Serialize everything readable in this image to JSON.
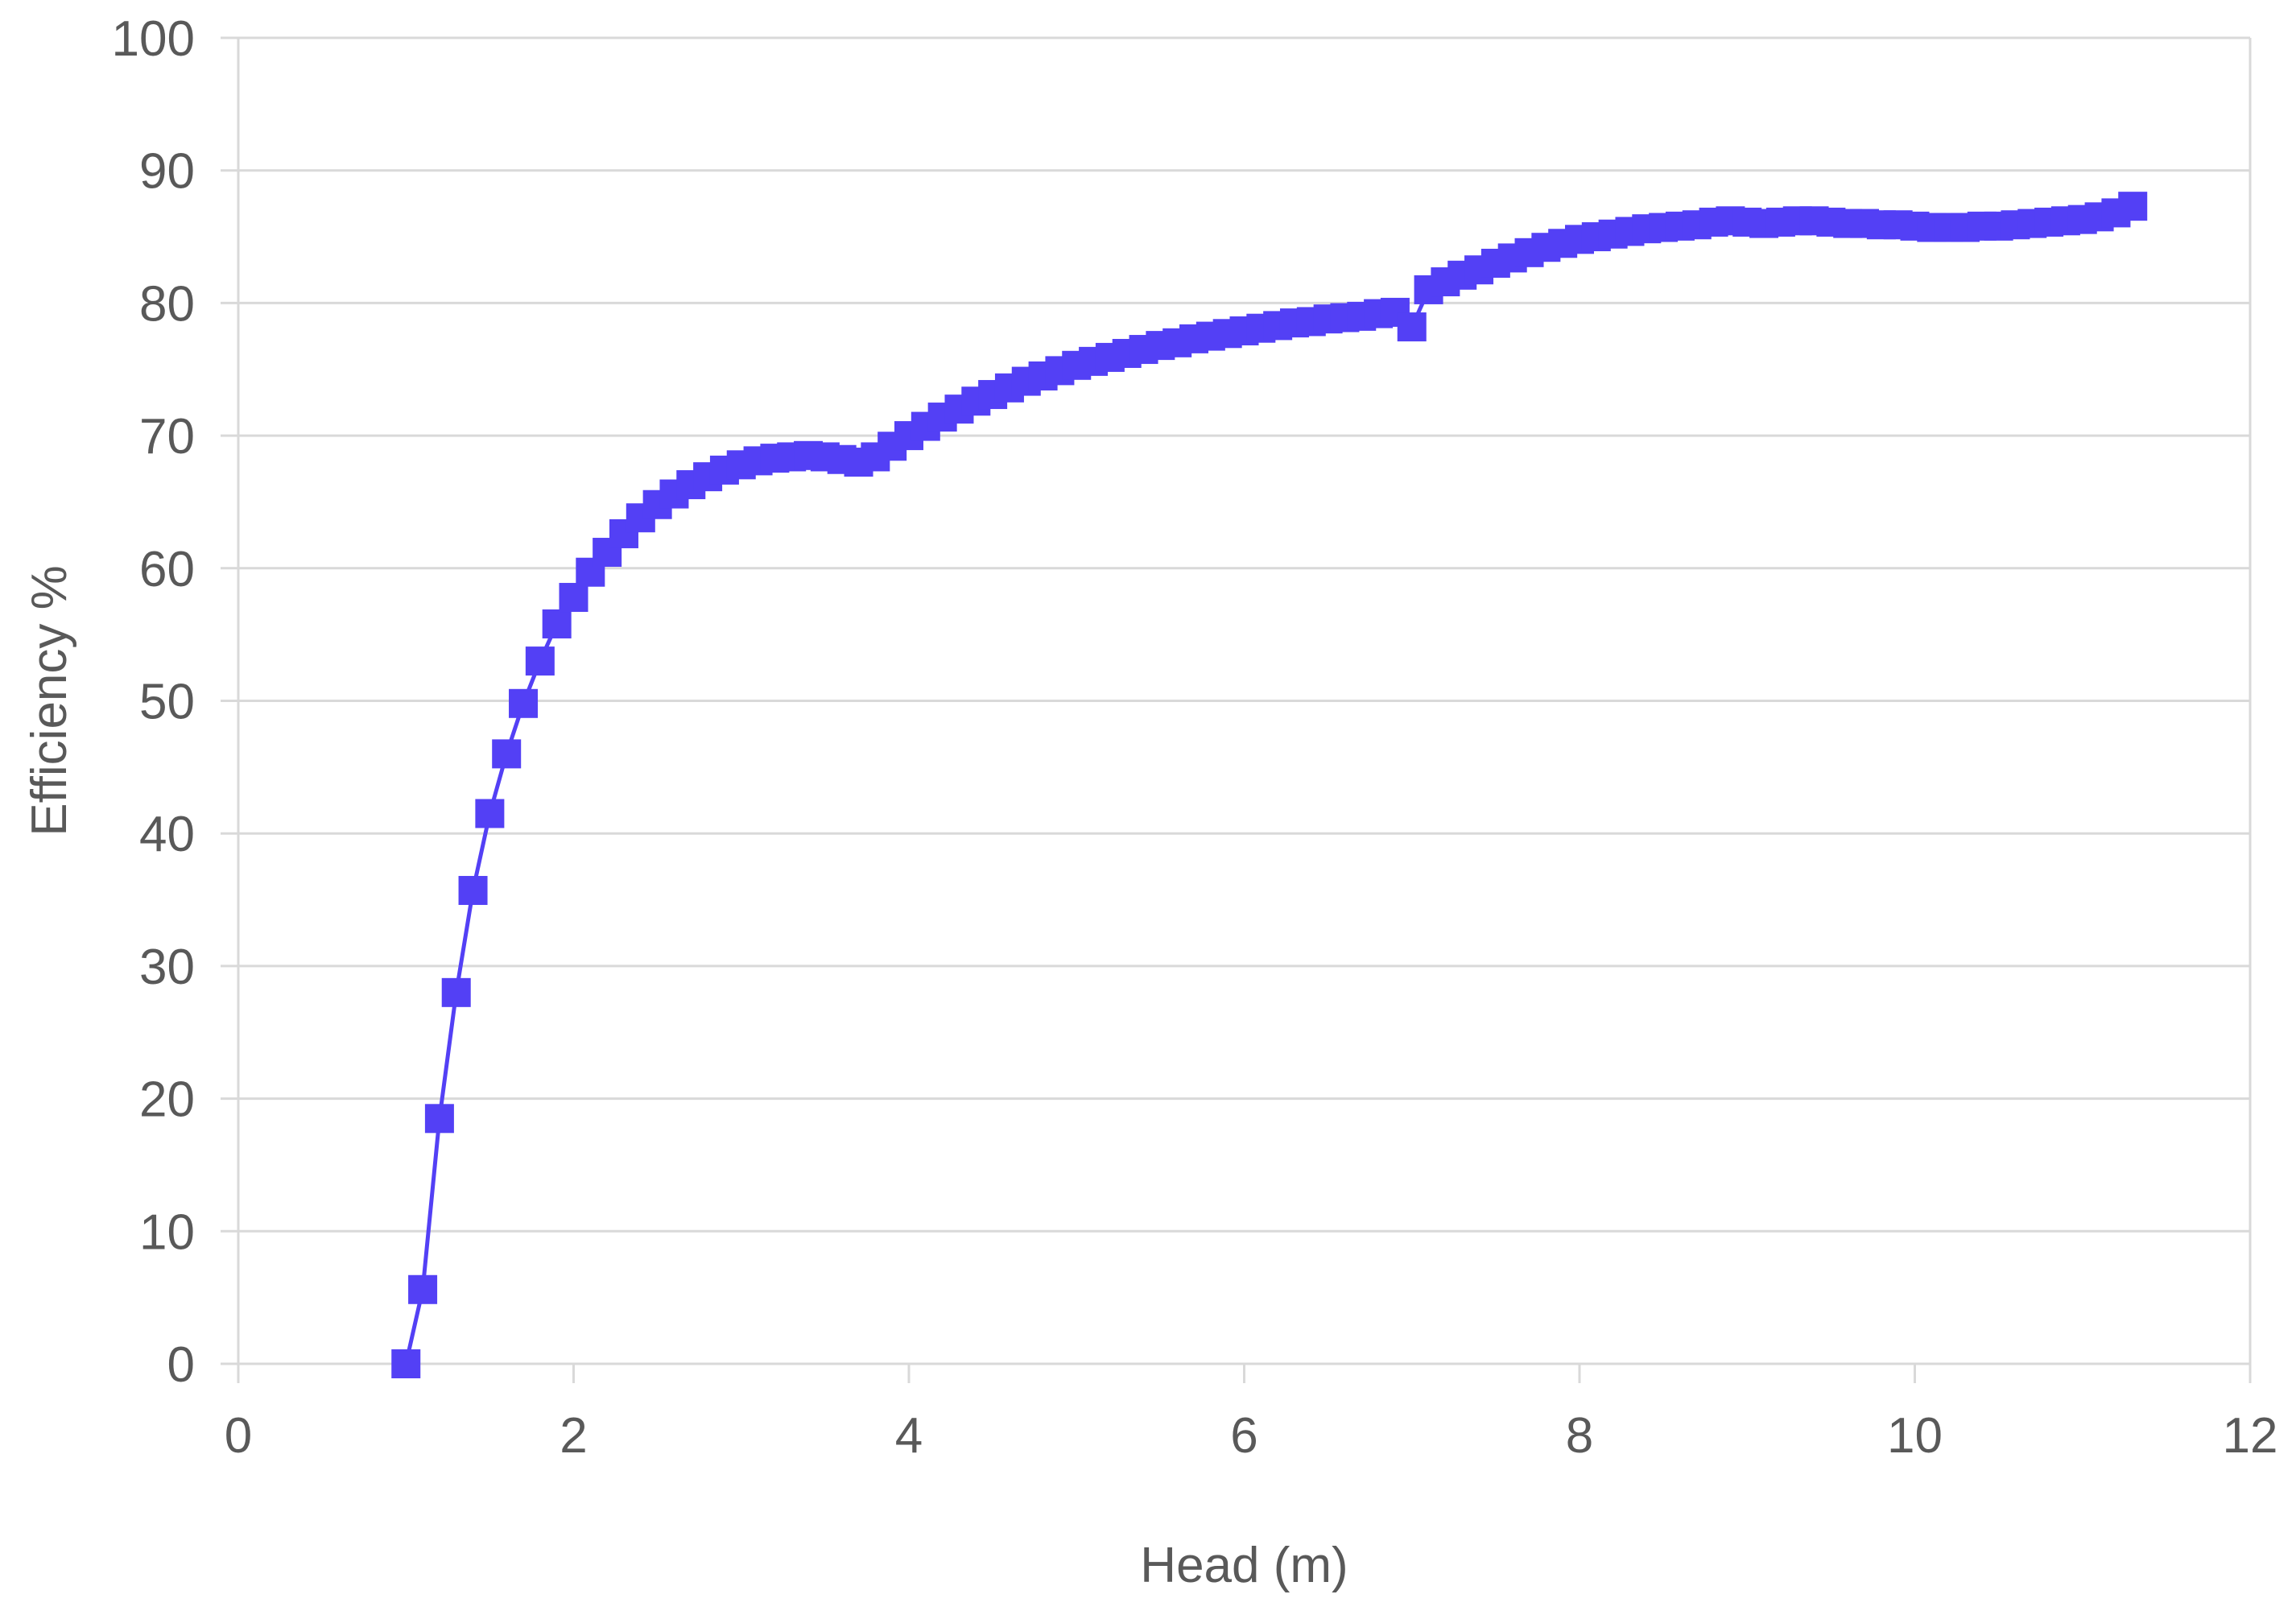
{
  "chart_data": {
    "type": "line",
    "xlabel": "Head (m)",
    "ylabel": "Efficiency %",
    "xlim": [
      0,
      12
    ],
    "ylim": [
      0,
      100
    ],
    "xticks": [
      0,
      2,
      4,
      6,
      8,
      10,
      12
    ],
    "yticks": [
      0,
      10,
      20,
      30,
      40,
      50,
      60,
      70,
      80,
      90,
      100
    ],
    "grid": "horizontal",
    "legend": "none",
    "marker": "square",
    "colors": {
      "series": "#5340F5",
      "gridline": "#D9D9D9",
      "tick_text": "#595959"
    },
    "series": [
      {
        "x": [
          1.0,
          1.1,
          1.2,
          1.3,
          1.4,
          1.5,
          1.6,
          1.7,
          1.8,
          1.9,
          2.0,
          2.1,
          2.2,
          2.3,
          2.4,
          2.5,
          2.6,
          2.7,
          2.8,
          2.9,
          3.0,
          3.1,
          3.2,
          3.3,
          3.4,
          3.5,
          3.6,
          3.7,
          3.8,
          3.9,
          4.0,
          4.1,
          4.2,
          4.3,
          4.4,
          4.5,
          4.6,
          4.7,
          4.8,
          4.9,
          5.0,
          5.1,
          5.2,
          5.3,
          5.4,
          5.5,
          5.6,
          5.7,
          5.8,
          5.9,
          6.0,
          6.1,
          6.2,
          6.3,
          6.4,
          6.5,
          6.6,
          6.7,
          6.8,
          6.9,
          7.0,
          7.1,
          7.2,
          7.3,
          7.4,
          7.5,
          7.6,
          7.7,
          7.8,
          7.9,
          8.0,
          8.1,
          8.2,
          8.3,
          8.4,
          8.5,
          8.6,
          8.7,
          8.8,
          8.9,
          9.0,
          9.1,
          9.2,
          9.3,
          9.4,
          9.5,
          9.6,
          9.7,
          9.8,
          9.9,
          10.0,
          10.1,
          10.2,
          10.3,
          10.4,
          10.5,
          10.6,
          10.7,
          10.8,
          10.9,
          11.0,
          11.1,
          11.2,
          11.3
        ],
        "y": [
          0,
          5.6,
          18.5,
          28,
          35.7,
          41.5,
          46,
          49.8,
          53,
          55.8,
          57.8,
          59.7,
          61.2,
          62.6,
          63.8,
          64.8,
          65.6,
          66.3,
          66.9,
          67.4,
          67.8,
          68.1,
          68.3,
          68.4,
          68.5,
          68.4,
          68.2,
          68.0,
          68.4,
          69.2,
          70.0,
          70.7,
          71.4,
          72.0,
          72.6,
          73.1,
          73.6,
          74.1,
          74.5,
          74.9,
          75.3,
          75.6,
          75.9,
          76.2,
          76.5,
          76.8,
          77.0,
          77.3,
          77.5,
          77.7,
          77.9,
          78.1,
          78.3,
          78.5,
          78.6,
          78.8,
          78.9,
          79.0,
          79.2,
          79.3,
          78.2,
          81.0,
          81.6,
          82.1,
          82.5,
          83.0,
          83.4,
          83.8,
          84.2,
          84.5,
          84.8,
          85.0,
          85.2,
          85.4,
          85.6,
          85.7,
          85.8,
          85.9,
          86.1,
          86.2,
          86.1,
          86.0,
          86.1,
          86.2,
          86.2,
          86.1,
          86.0,
          86.0,
          85.9,
          85.9,
          85.8,
          85.7,
          85.7,
          85.7,
          85.8,
          85.8,
          85.9,
          86.0,
          86.1,
          86.2,
          86.3,
          86.5,
          86.8,
          87.3
        ]
      }
    ]
  }
}
